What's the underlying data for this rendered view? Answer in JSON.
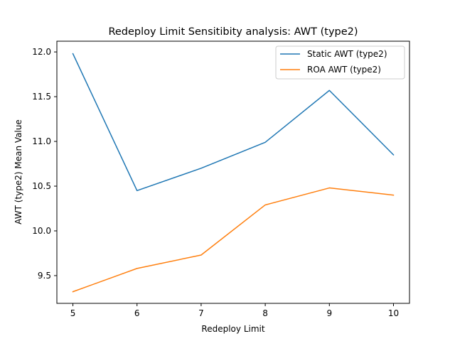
{
  "chart_data": {
    "type": "line",
    "title": "Redeploy Limit Sensitibity analysis: AWT (type2)",
    "xlabel": "Redeploy Limit",
    "ylabel": "AWT (type2) Mean Value",
    "x": [
      5,
      6,
      7,
      8,
      9,
      10
    ],
    "xlim": [
      4.75,
      10.25
    ],
    "ylim": [
      9.19,
      12.12
    ],
    "xticks": [
      "5",
      "6",
      "7",
      "8",
      "9",
      "10"
    ],
    "yticks": [
      "9.5",
      "10.0",
      "10.5",
      "11.0",
      "11.5",
      "12.0"
    ],
    "grid": false,
    "legend_position": "upper right",
    "series": [
      {
        "name": "Static AWT (type2)",
        "color": "#1f77b4",
        "values": [
          11.98,
          10.45,
          10.7,
          10.99,
          11.57,
          10.85
        ]
      },
      {
        "name": "ROA AWT (type2)",
        "color": "#ff7f0e",
        "values": [
          9.32,
          9.58,
          9.73,
          10.29,
          10.48,
          10.4
        ]
      }
    ]
  }
}
